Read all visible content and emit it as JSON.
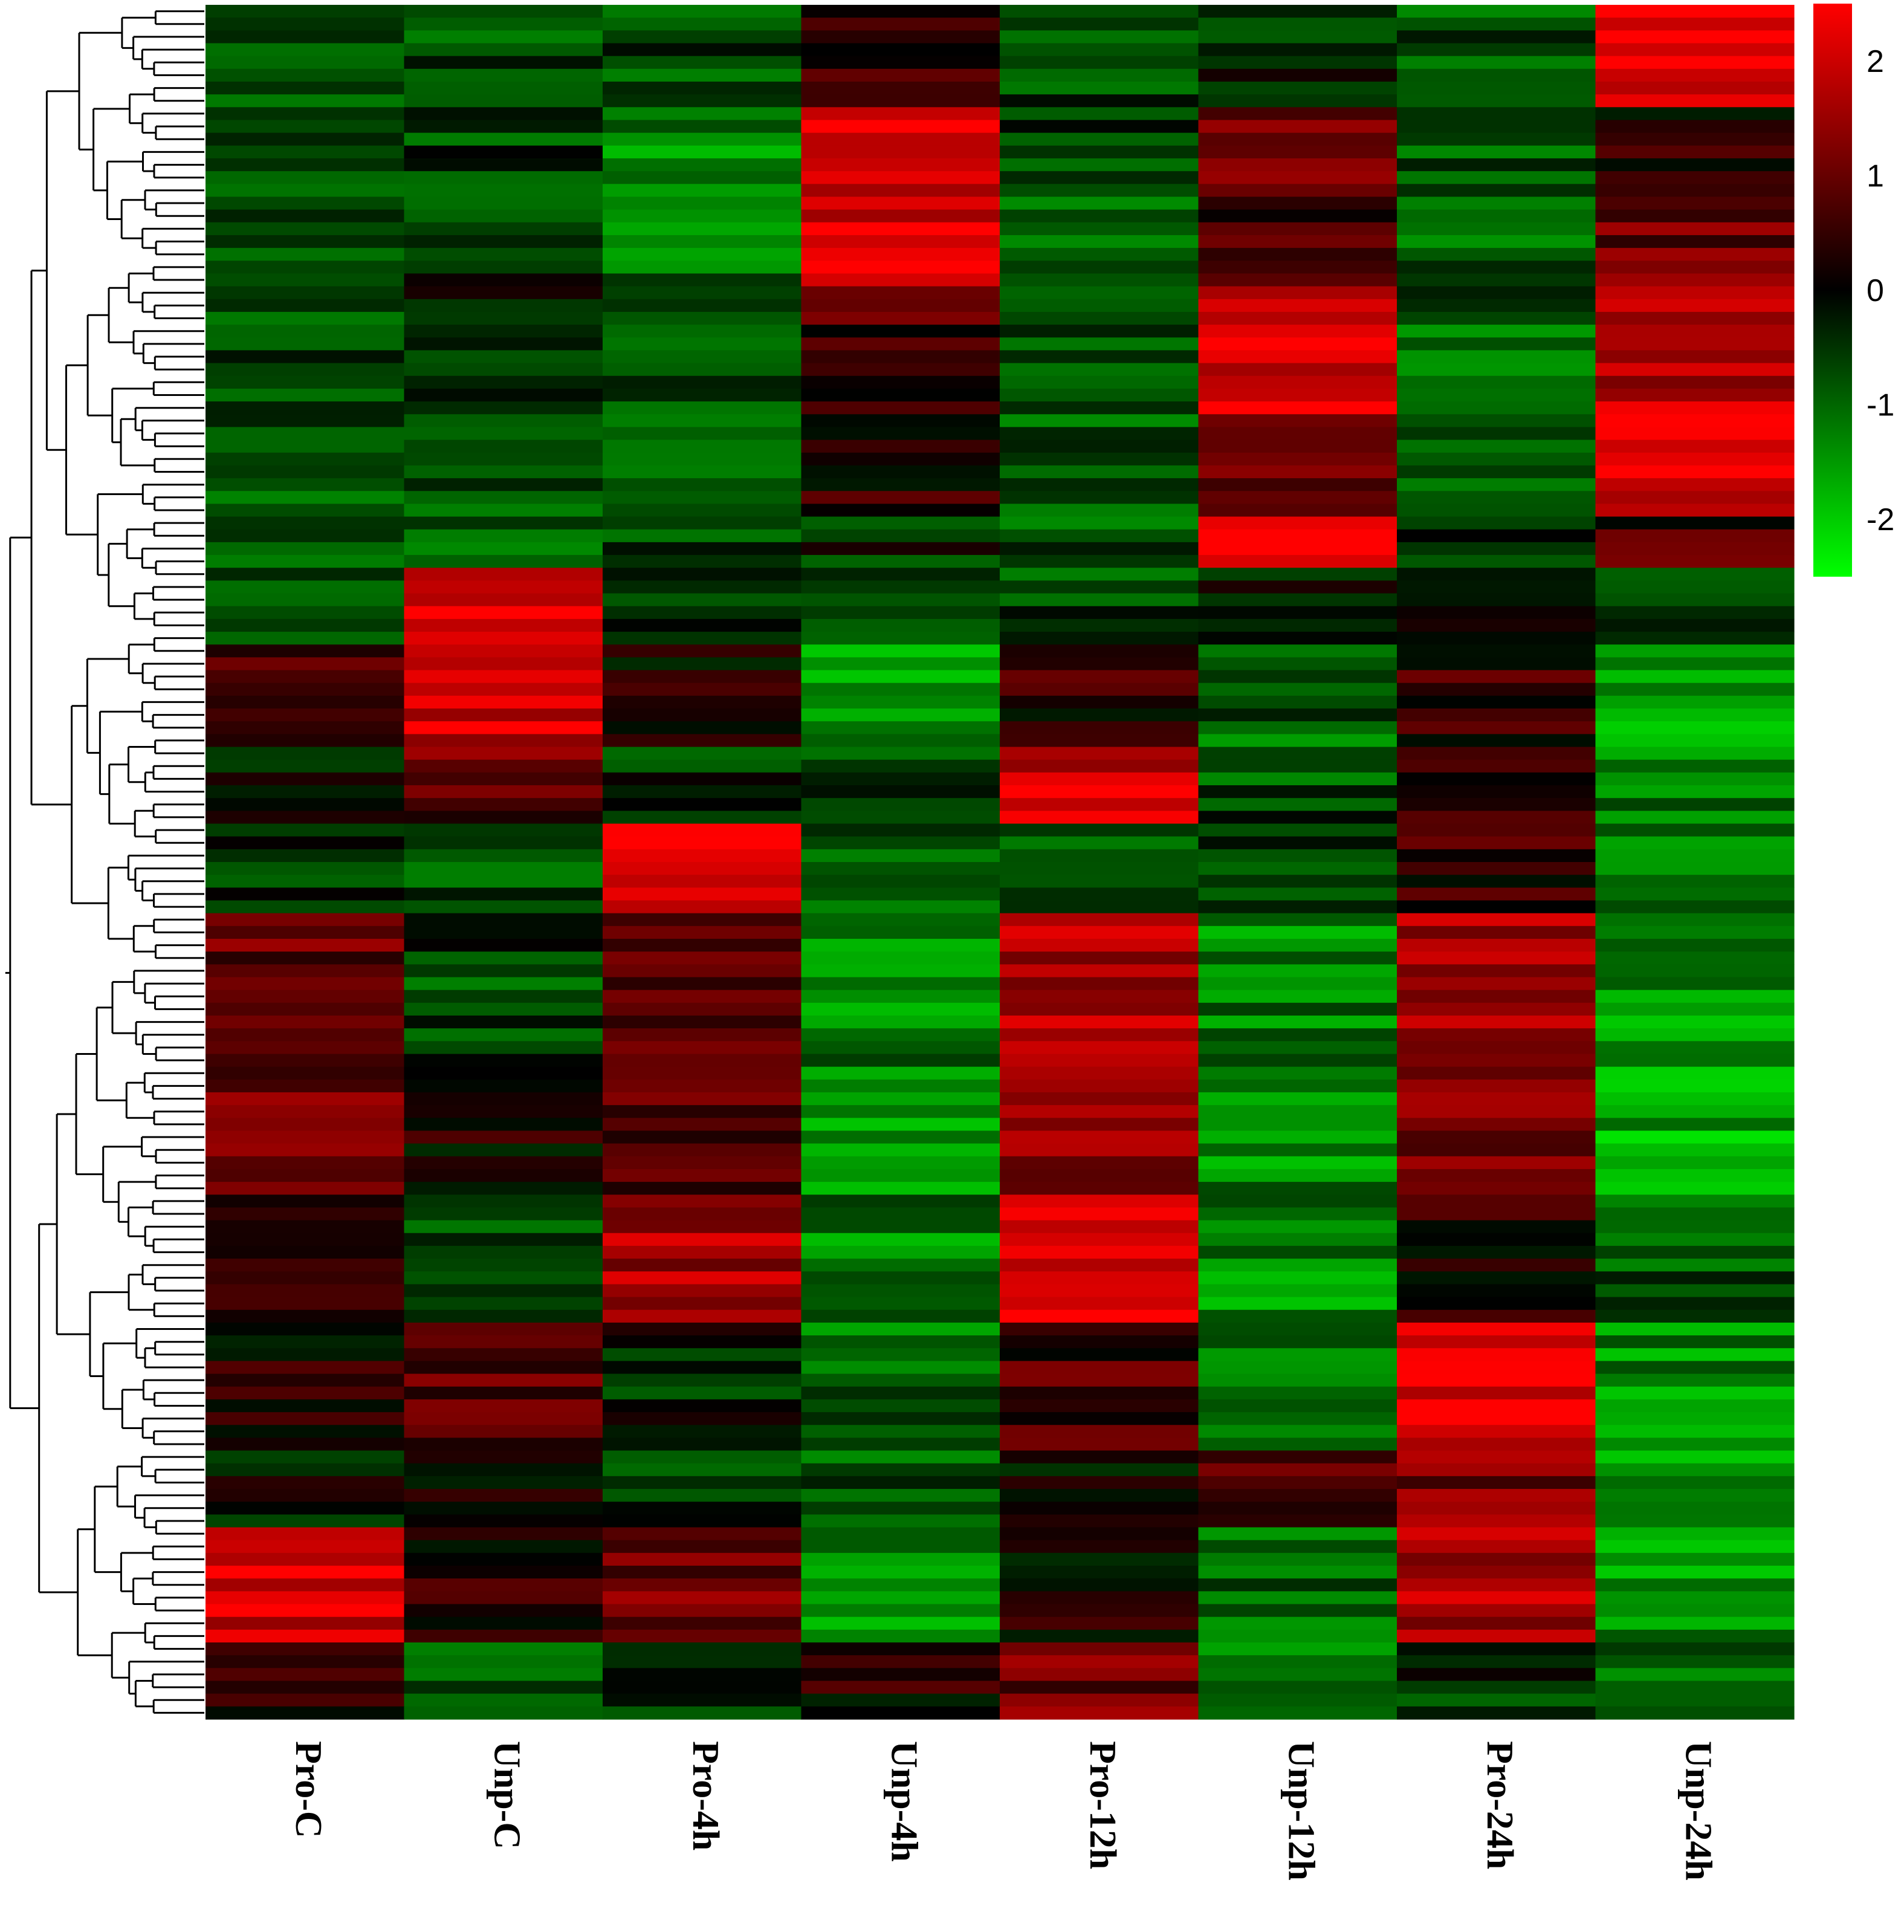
{
  "chart_data": {
    "type": "heatmap",
    "title": "",
    "xlabel": "",
    "ylabel": "",
    "columns": [
      "Pro-C",
      "Unp-C",
      "Pro-4h",
      "Unp-4h",
      "Pro-12h",
      "Unp-12h",
      "Pro-24h",
      "Unp-24h"
    ],
    "color_scale": {
      "min": -2.5,
      "max": 2.5,
      "low_color": "#00ff00",
      "mid_color": "#000000",
      "high_color": "#ff0000",
      "ticks": [
        "2",
        "1",
        "0",
        "-1",
        "-2"
      ]
    },
    "row_dendrogram": true,
    "n_rows_approx": 140,
    "blocks": [
      {
        "rows": 8,
        "values": [
          -0.6,
          -0.8,
          -0.7,
          0.4,
          -0.7,
          -0.3,
          -0.8,
          2.3
        ]
      },
      {
        "rows": 6,
        "values": [
          -0.4,
          -0.6,
          -1.2,
          2.0,
          -0.6,
          1.0,
          -0.8,
          0.2
        ]
      },
      {
        "rows": 8,
        "values": [
          -0.7,
          -0.5,
          -1.0,
          2.2,
          -0.8,
          0.6,
          -0.9,
          1.0
        ]
      },
      {
        "rows": 10,
        "values": [
          -0.6,
          -0.4,
          -0.8,
          0.6,
          -0.9,
          2.2,
          -0.9,
          1.8
        ]
      },
      {
        "rows": 8,
        "values": [
          -0.7,
          -0.8,
          -0.7,
          0.3,
          -0.9,
          0.8,
          -0.9,
          2.2
        ]
      },
      {
        "rows": 4,
        "values": [
          -0.6,
          -0.7,
          -0.6,
          -0.4,
          -0.7,
          2.3,
          -0.6,
          0.6
        ]
      },
      {
        "rows": 6,
        "values": [
          -0.5,
          2.2,
          -0.4,
          -0.6,
          -0.6,
          -0.3,
          0.3,
          -0.7
        ]
      },
      {
        "rows": 8,
        "values": [
          0.8,
          2.0,
          0.2,
          -1.4,
          0.4,
          -0.9,
          0.5,
          -1.5
        ]
      },
      {
        "rows": 6,
        "values": [
          -0.3,
          0.9,
          -0.4,
          -0.5,
          2.0,
          -0.7,
          0.5,
          -1.2
        ]
      },
      {
        "rows": 7,
        "values": [
          -0.4,
          -0.8,
          2.4,
          -0.8,
          -0.6,
          -0.5,
          0.4,
          -1.1
        ]
      },
      {
        "rows": 12,
        "values": [
          0.9,
          -0.6,
          0.8,
          -1.2,
          1.6,
          -1.2,
          1.6,
          -1.4
        ]
      },
      {
        "rows": 10,
        "values": [
          1.1,
          0.2,
          0.9,
          -1.5,
          1.2,
          -1.3,
          1.2,
          -1.6
        ]
      },
      {
        "rows": 10,
        "values": [
          0.2,
          -0.8,
          1.6,
          -1.2,
          2.2,
          -1.3,
          0.3,
          -0.8
        ]
      },
      {
        "rows": 10,
        "values": [
          0.3,
          0.9,
          -0.3,
          -1.0,
          0.6,
          -1.3,
          2.2,
          -1.3
        ]
      },
      {
        "rows": 6,
        "values": [
          -0.2,
          0.2,
          -0.4,
          -0.8,
          -0.2,
          0.8,
          1.2,
          -1.5
        ]
      },
      {
        "rows": 9,
        "values": [
          2.0,
          0.4,
          1.0,
          -1.3,
          0.2,
          -1.0,
          1.6,
          -1.4
        ]
      },
      {
        "rows": 6,
        "values": [
          0.4,
          -0.6,
          -0.4,
          0.3,
          1.0,
          -1.2,
          -0.4,
          -1.1
        ]
      }
    ]
  }
}
